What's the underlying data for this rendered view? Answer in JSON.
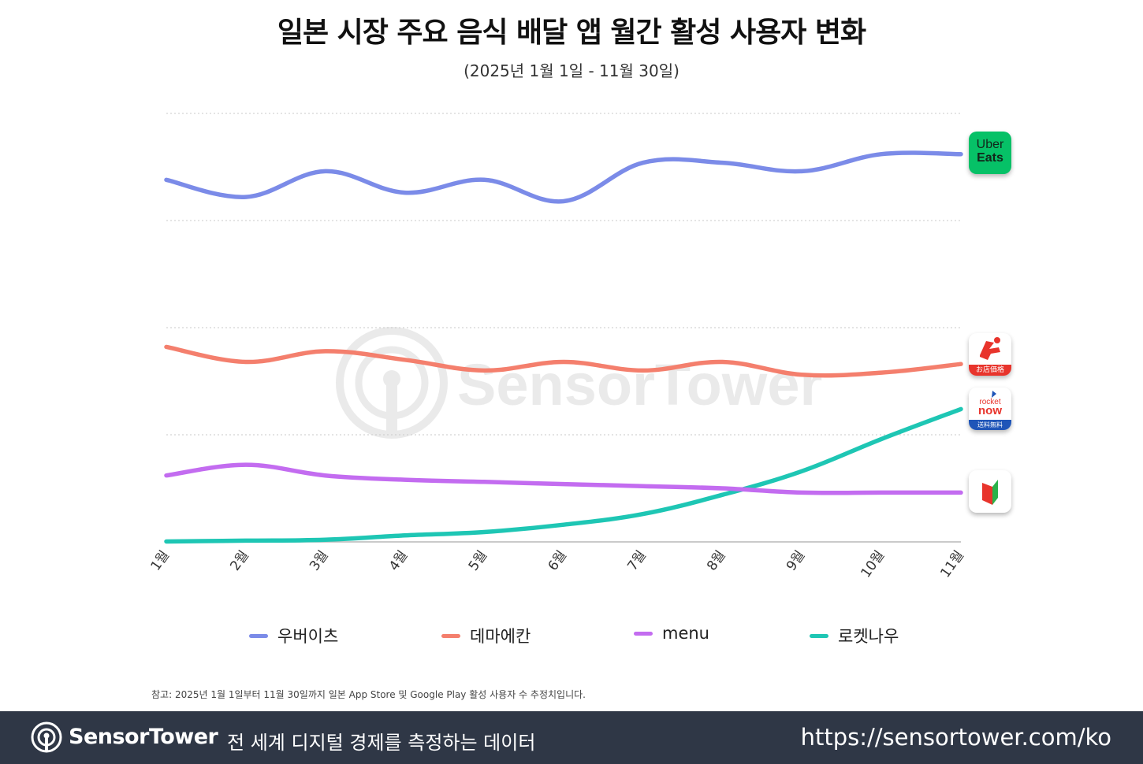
{
  "title": "일본 시장 주요 음식 배달 앱 월간 활성 사용자 변화",
  "subtitle": "(2025년 1월 1일 - 11월 30일)",
  "chart_data": {
    "type": "line",
    "categories": [
      "1월",
      "2월",
      "3월",
      "4월",
      "5월",
      "6월",
      "7월",
      "8월",
      "9월",
      "10월",
      "11월"
    ],
    "ylim": [
      0,
      100
    ],
    "gridlines": [
      0,
      25,
      50,
      75,
      100
    ],
    "y_tick_labels_shown": false,
    "series": [
      {
        "name": "우버이츠",
        "color": "#7b8be8",
        "values": [
          84.5,
          80.5,
          86.5,
          81.5,
          84.5,
          79.5,
          88.5,
          88.5,
          86.5,
          90.5,
          90.5
        ]
      },
      {
        "name": "데마에칸",
        "color": "#f47f6d",
        "values": [
          45.5,
          42.0,
          44.5,
          42.5,
          40.0,
          42.0,
          40.0,
          42.0,
          39.0,
          39.5,
          41.5
        ]
      },
      {
        "name": "menu",
        "color": "#c36cf0",
        "values": [
          15.5,
          18.0,
          15.5,
          14.5,
          14.0,
          13.5,
          13.0,
          12.5,
          11.5,
          11.5,
          11.5
        ]
      },
      {
        "name": "로켓나우",
        "color": "#1ec6b4",
        "values": [
          0.1,
          0.3,
          0.5,
          1.5,
          2.3,
          4.0,
          6.5,
          11.0,
          16.5,
          24.0,
          31.0
        ]
      }
    ],
    "watermark": "SensorTower"
  },
  "app_icons": [
    {
      "series": "우버이츠",
      "icon": "uber-eats-app-icon",
      "line1": "Uber",
      "line2": "Eats",
      "bg": "#06c167"
    },
    {
      "series": "데마에칸",
      "icon": "demae-can-app-icon",
      "caption": "お店価格",
      "bg": "#e8342c"
    },
    {
      "series": "로켓나우",
      "icon": "rocket-now-app-icon",
      "line1": "rocket",
      "line2": "now",
      "caption": "送料無料",
      "bg": "#1f55b8"
    },
    {
      "series": "menu",
      "icon": "menu-app-icon",
      "bg": "#ffffff"
    }
  ],
  "note": "참고: 2025년 1월 1일부터 11월 30일까지 일본 App Store 및 Google Play 활성 사용자 수 추정치입니다.",
  "footer": {
    "brand": "SensorTower",
    "tagline": "전 세계 디지털 경제를 측정하는 데이터",
    "url": "https://sensortower.com/ko",
    "background": "#2f3746"
  }
}
